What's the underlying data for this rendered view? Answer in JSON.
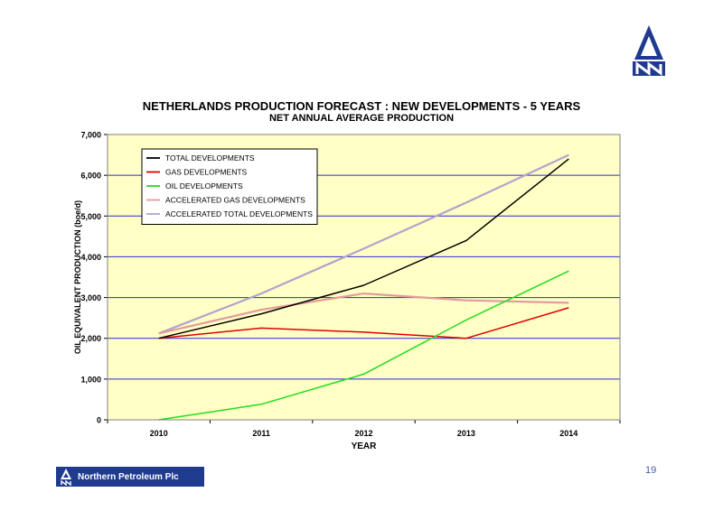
{
  "slide": {
    "page_number": "19",
    "brand_name": "Northern Petroleum Plc",
    "logo_icon": "northern-petroleum-logo-icon",
    "colors": {
      "brand": "#1f3b8f",
      "plot_bg": "#ffffc6",
      "grid": "#2a2ad0"
    }
  },
  "chart_data": {
    "type": "line",
    "title": "NETHERLANDS PRODUCTION FORECAST : NEW DEVELOPMENTS - 5 YEARS",
    "subtitle": "NET ANNUAL AVERAGE PRODUCTION",
    "xlabel": "YEAR",
    "ylabel": "OIL EQUIVALENT  PRODUCTION  (boe/d)",
    "categories": [
      "2010",
      "2011",
      "2012",
      "2013",
      "2014"
    ],
    "ylim": [
      0,
      7000
    ],
    "yticks": [
      0,
      1000,
      2000,
      3000,
      4000,
      5000,
      6000,
      7000
    ],
    "ytick_labels": [
      "0",
      "1,000",
      "2,000",
      "3,000",
      "4,000",
      "5,000",
      "6,000",
      "7,000"
    ],
    "grid": true,
    "legend_position": "top-left",
    "series": [
      {
        "name": "TOTAL DEVELOPMENTS",
        "color": "#000000",
        "values": [
          2000,
          2600,
          3300,
          4400,
          6400
        ]
      },
      {
        "name": "GAS DEVELOPMENTS",
        "color": "#e00000",
        "values": [
          2000,
          2250,
          2150,
          2000,
          2750
        ]
      },
      {
        "name": "OIL DEVELOPMENTS",
        "color": "#22dd22",
        "values": [
          0,
          380,
          1120,
          2450,
          3650
        ]
      },
      {
        "name": "ACCELERATED GAS DEVELOPMENTS",
        "color": "#e39b9b",
        "values": [
          2120,
          2700,
          3100,
          2930,
          2870
        ]
      },
      {
        "name": "ACCELERATED TOTAL DEVELOPMENTS",
        "color": "#b3a3cc",
        "values": [
          2120,
          3100,
          4200,
          5330,
          6500
        ]
      }
    ]
  }
}
